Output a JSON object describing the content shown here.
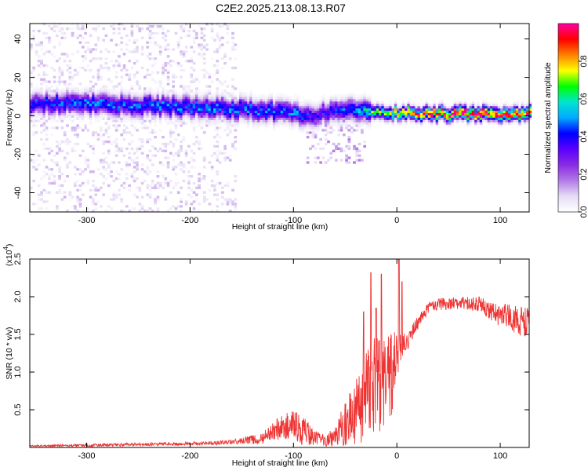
{
  "title": "C2E2.2025.213.08.13.R07",
  "colors": {
    "snr_line": "#ee3333",
    "frame": "#000000",
    "colormap": [
      "#ffffff",
      "#e6dcf5",
      "#b27ae6",
      "#8a2be2",
      "#5a00ff",
      "#0000ff",
      "#00aaff",
      "#00e5d0",
      "#00ff00",
      "#ffff00",
      "#ff8000",
      "#ff0000",
      "#ff00a0"
    ]
  },
  "chart_data": [
    {
      "type": "heatmap",
      "xlabel": "Height of straight line (km)",
      "ylabel": "Frequency (Hz)",
      "xlim": [
        -355,
        128
      ],
      "ylim": [
        -50,
        48
      ],
      "xticks": [
        -300,
        -200,
        -100,
        0,
        100
      ],
      "xtick_labels": [
        "-300",
        "-200",
        "-100",
        "0",
        "100"
      ],
      "yticks": [
        -40,
        -20,
        0,
        20,
        40
      ],
      "ytick_labels": [
        "-40",
        "-20",
        "0",
        "20",
        "40"
      ],
      "colorbar": {
        "label": "Normalized spectral amplitude",
        "range": [
          0,
          1
        ],
        "ticks": [
          0,
          0.2,
          0.4,
          0.6,
          0.8
        ],
        "tick_labels": [
          "0.0",
          "0.2",
          "0.4",
          "0.6",
          "0.8"
        ],
        "position": "right"
      },
      "signal_band": {
        "x": [
          -355,
          -300,
          -250,
          -200,
          -150,
          -120,
          -100,
          -80,
          -60,
          -40,
          -25,
          0,
          50,
          100,
          128
        ],
        "center_freq": [
          6,
          6,
          5,
          4,
          3,
          2,
          0,
          0,
          2,
          3,
          1,
          1,
          0.5,
          0.5,
          1
        ],
        "peak_amplitude": [
          0.4,
          0.45,
          0.45,
          0.45,
          0.45,
          0.45,
          0.45,
          0.35,
          0.4,
          0.45,
          0.6,
          0.75,
          0.95,
          0.95,
          0.9
        ]
      },
      "grid": false
    },
    {
      "type": "line",
      "xlabel": "Height of straight line (km)",
      "ylabel": "SNR (10 * v/v)",
      "y_scale_label": "(x10",
      "y_scale_exponent": "4",
      "y_scale_close": ")",
      "xlim": [
        -355,
        128
      ],
      "ylim": [
        0,
        2.5
      ],
      "xticks": [
        -300,
        -200,
        -100,
        0,
        100
      ],
      "xtick_labels": [
        "-300",
        "-200",
        "-100",
        "0",
        "100"
      ],
      "yticks": [
        0.5,
        1.0,
        1.5,
        2.0,
        2.5
      ],
      "ytick_labels": [
        "0.5",
        "1.0",
        "1.5",
        "2.0",
        "2.5"
      ],
      "series": [
        {
          "x": [
            -355,
            -300,
            -250,
            -200,
            -160,
            -130,
            -115,
            -100,
            -90,
            -80,
            -70,
            -60,
            -50,
            -40,
            -30,
            -20,
            -10,
            -5,
            0,
            5,
            10,
            20,
            30,
            40,
            60,
            80,
            100,
            115,
            128
          ],
          "values": [
            0.02,
            0.03,
            0.04,
            0.05,
            0.07,
            0.12,
            0.25,
            0.3,
            0.22,
            0.12,
            0.1,
            0.15,
            0.3,
            0.45,
            0.7,
            0.85,
            0.9,
            1.0,
            1.2,
            1.35,
            1.4,
            1.65,
            1.85,
            1.9,
            1.92,
            1.9,
            1.75,
            1.7,
            1.65
          ],
          "spread": [
            0.01,
            0.02,
            0.02,
            0.02,
            0.03,
            0.08,
            0.15,
            0.2,
            0.2,
            0.1,
            0.08,
            0.15,
            0.3,
            0.45,
            0.6,
            0.7,
            0.6,
            0.6,
            0.3,
            0.15,
            0.12,
            0.1,
            0.08,
            0.08,
            0.08,
            0.1,
            0.15,
            0.2,
            0.2
          ],
          "spikes": [
            [
              -25,
              2.32
            ],
            [
              -15,
              2.3
            ],
            [
              2,
              2.5
            ],
            [
              5,
              2.2
            ],
            [
              -32,
              1.8
            ],
            [
              -20,
              1.85
            ]
          ]
        }
      ],
      "grid": false
    }
  ]
}
